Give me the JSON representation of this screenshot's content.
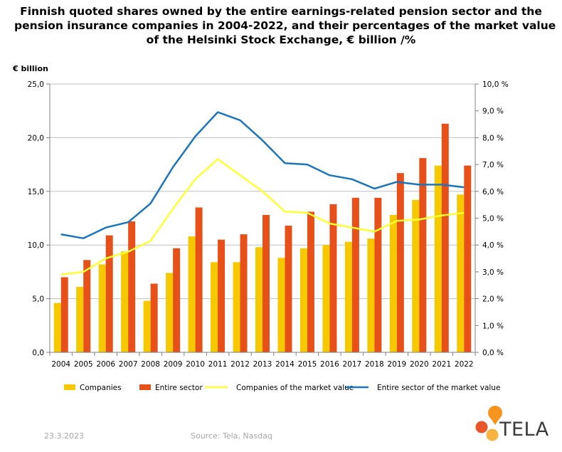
{
  "title_lines": [
    "Finnish quoted shares owned by the entire earnings-related pension sector and the",
    "pension insurance companies in 2004-2022, and their percentages of the market value",
    "of the Helsinki Stock Exchange, € billion /%"
  ],
  "footer": {
    "date": "23.3.2023",
    "source": "Source: Tela, Nasdaq"
  },
  "logo": {
    "text": "TELA",
    "colors": [
      "#f7941d",
      "#e8562a",
      "#f6b33d"
    ]
  },
  "chart_data": {
    "type": "bar",
    "ylabel": "€ billion",
    "ylim": [
      0,
      25
    ],
    "yticks": [
      "0,0",
      "5,0",
      "10,0",
      "15,0",
      "20,0",
      "25,0"
    ],
    "y2lim": [
      0,
      10
    ],
    "y2ticks": [
      "0,0 %",
      "1,0 %",
      "2,0 %",
      "3,0 %",
      "4,0 %",
      "5,0 %",
      "6,0 %",
      "7,0 %",
      "8,0 %",
      "9,0 %",
      "10,0 %"
    ],
    "categories": [
      "2004",
      "2005",
      "2006",
      "2007",
      "2008",
      "2009",
      "2010",
      "2011",
      "2012",
      "2013",
      "2014",
      "2015",
      "2016",
      "2017",
      "2018",
      "2019",
      "2020",
      "2021",
      "2022"
    ],
    "series": [
      {
        "name": "Companies",
        "kind": "bar",
        "axis": "left",
        "color": "#f5c800",
        "values": [
          4.6,
          6.1,
          8.2,
          9.4,
          4.8,
          7.4,
          10.8,
          8.4,
          8.4,
          9.8,
          8.8,
          9.7,
          10.0,
          10.3,
          10.6,
          12.8,
          14.2,
          17.4,
          14.7
        ]
      },
      {
        "name": "Entire sector",
        "kind": "bar",
        "axis": "left",
        "color": "#e8501a",
        "values": [
          7.0,
          8.6,
          10.9,
          12.2,
          6.4,
          9.7,
          13.5,
          10.5,
          11.0,
          12.8,
          11.8,
          13.1,
          13.8,
          14.4,
          14.4,
          16.7,
          18.1,
          21.3,
          17.4
        ]
      },
      {
        "name": "Companies of the market value",
        "kind": "line",
        "axis": "right",
        "color": "#ffff33",
        "values": [
          2.9,
          3.0,
          3.5,
          3.75,
          4.15,
          5.35,
          6.45,
          7.2,
          6.6,
          6.0,
          5.25,
          5.2,
          4.8,
          4.65,
          4.5,
          4.9,
          4.95,
          5.1,
          5.2
        ]
      },
      {
        "name": "Entire sector of the market value",
        "kind": "line",
        "axis": "right",
        "color": "#1b75bc",
        "values": [
          4.4,
          4.25,
          4.65,
          4.85,
          5.55,
          6.9,
          8.05,
          8.95,
          8.65,
          7.9,
          7.05,
          7.0,
          6.6,
          6.45,
          6.1,
          6.35,
          6.25,
          6.25,
          6.15
        ]
      }
    ],
    "grid": "horizontal",
    "legend": "bottom"
  }
}
